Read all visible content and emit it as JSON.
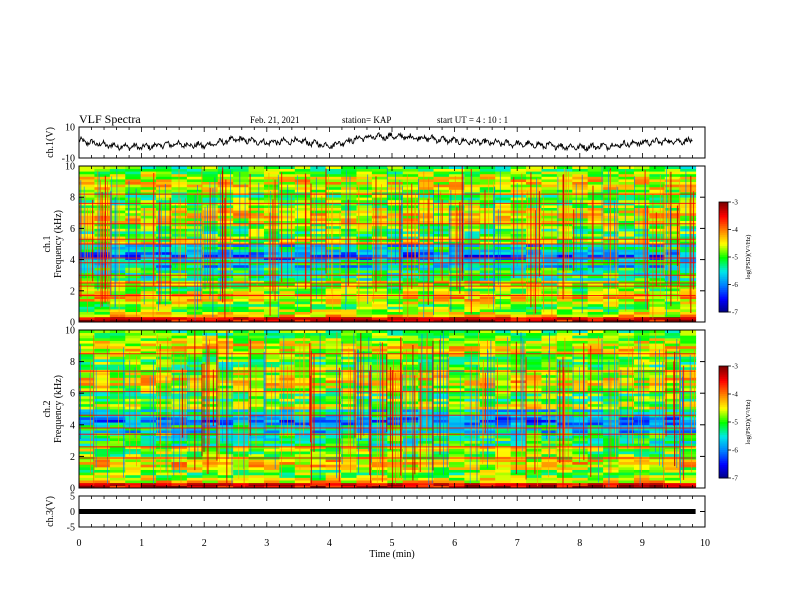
{
  "header": {
    "title": "VLF Spectra",
    "date": "Feb. 21, 2021",
    "station": "station= KAP",
    "start_ut": "start  UT =   4 : 10 : 1"
  },
  "chart_data": [
    {
      "type": "line",
      "panel": "ch1-waveform",
      "ylabel": "ch.1(V)",
      "ylim": [
        -10,
        10
      ],
      "y_ticks": [
        "10",
        "-10"
      ],
      "xlim": [
        0,
        10
      ],
      "data_end_min": 9.85,
      "series": [
        {
          "x": [
            0.0,
            0.5,
            1.0,
            1.5,
            2.0,
            2.5,
            3.0,
            3.5,
            4.0,
            4.5,
            5.0,
            5.5,
            6.0,
            6.5,
            7.0,
            7.5,
            8.0,
            8.5,
            9.0,
            9.5,
            9.8
          ],
          "y": [
            1,
            -2,
            -3,
            -1,
            -2,
            2,
            0,
            1,
            -2,
            3,
            4,
            3,
            1,
            0,
            -1,
            -2,
            -3,
            -2,
            0,
            1,
            1
          ]
        }
      ]
    },
    {
      "type": "heatmap",
      "panel": "ch1-spectrogram",
      "ylabel": "ch.1\nFrequency (kHz)",
      "ylim": [
        0,
        10
      ],
      "y_ticks": [
        "0",
        "2",
        "4",
        "6",
        "8",
        "10"
      ],
      "xlim": [
        0,
        10
      ],
      "colorbar": {
        "label": "log(PSD)(V²/Hz)",
        "range": [
          -7,
          -3
        ],
        "ticks": [
          "-3",
          "-4",
          "-5",
          "-6",
          "-7"
        ]
      }
    },
    {
      "type": "heatmap",
      "panel": "ch2-spectrogram",
      "ylabel": "ch.2\nFrequency (kHz)",
      "ylim": [
        0,
        10
      ],
      "y_ticks": [
        "0",
        "2",
        "4",
        "6",
        "8",
        "10"
      ],
      "xlim": [
        0,
        10
      ],
      "colorbar": {
        "label": "log(PSD)(V²/Hz)",
        "range": [
          -7,
          -3
        ],
        "ticks": [
          "-3",
          "-4",
          "-5",
          "-6",
          "-7"
        ]
      }
    },
    {
      "type": "line",
      "panel": "ch3-waveform",
      "ylabel": "ch.3(V)",
      "ylim": [
        -5,
        5
      ],
      "y_ticks": [
        "5",
        "0",
        "-5"
      ],
      "xlim": [
        0,
        10
      ],
      "series": [
        {
          "x": [
            0,
            9.85
          ],
          "y": [
            0,
            0
          ]
        }
      ]
    }
  ],
  "x_axis": {
    "label": "Time  (min)",
    "ticks": [
      "0",
      "1",
      "2",
      "3",
      "4",
      "5",
      "6",
      "7",
      "8",
      "9",
      "10"
    ]
  },
  "colors": {
    "colormap": [
      "#00007f",
      "#0000ff",
      "#0080ff",
      "#00e8e8",
      "#00ff00",
      "#ffff00",
      "#ff8000",
      "#ff0000",
      "#7f0000"
    ]
  }
}
